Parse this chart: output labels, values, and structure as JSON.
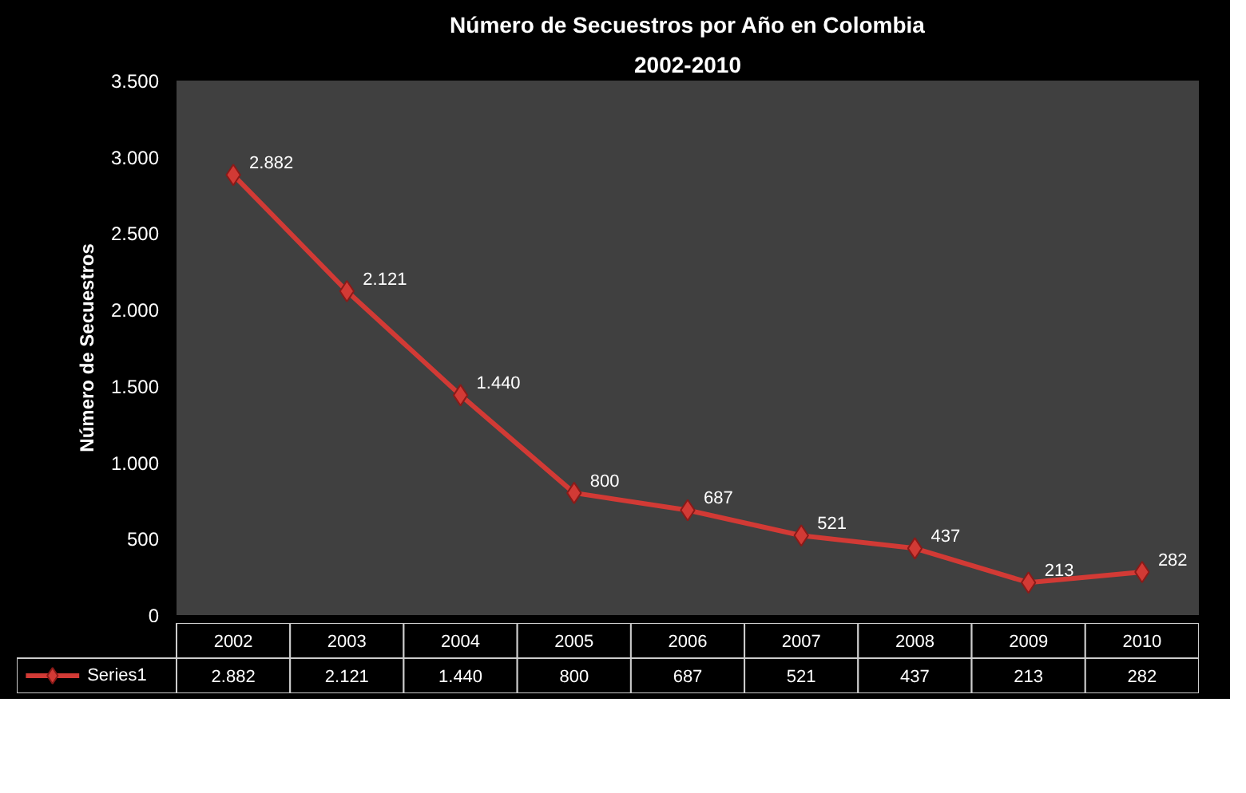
{
  "chart_data": {
    "type": "line",
    "title": "Número de Secuestros por Año en Colombia",
    "subtitle": "2002-2010",
    "ylabel": "Número de Secuestros",
    "categories": [
      "2002",
      "2003",
      "2004",
      "2005",
      "2006",
      "2007",
      "2008",
      "2009",
      "2010"
    ],
    "series": [
      {
        "name": "Series1",
        "color": "#d23a35",
        "values": [
          2882,
          2121,
          1440,
          800,
          687,
          521,
          437,
          213,
          282
        ],
        "value_labels": [
          "2.882",
          "2.121",
          "1.440",
          "800",
          "687",
          "521",
          "437",
          "213",
          "282"
        ]
      }
    ],
    "ylim": [
      0,
      3500
    ],
    "yticks": [
      0,
      {
        "value": 500,
        "label": "500"
      },
      {
        "value": 1000,
        "label": "1.000"
      },
      {
        "value": 1500,
        "label": "1.500"
      },
      {
        "value": 2000,
        "label": "2.000"
      },
      {
        "value": 2500,
        "label": "2.500"
      },
      {
        "value": 3000,
        "label": "3.000"
      },
      {
        "value": 3500,
        "label": "3.500"
      }
    ],
    "marker": "diamond",
    "line_style": "solid",
    "grid": false,
    "legend": "bottom"
  }
}
